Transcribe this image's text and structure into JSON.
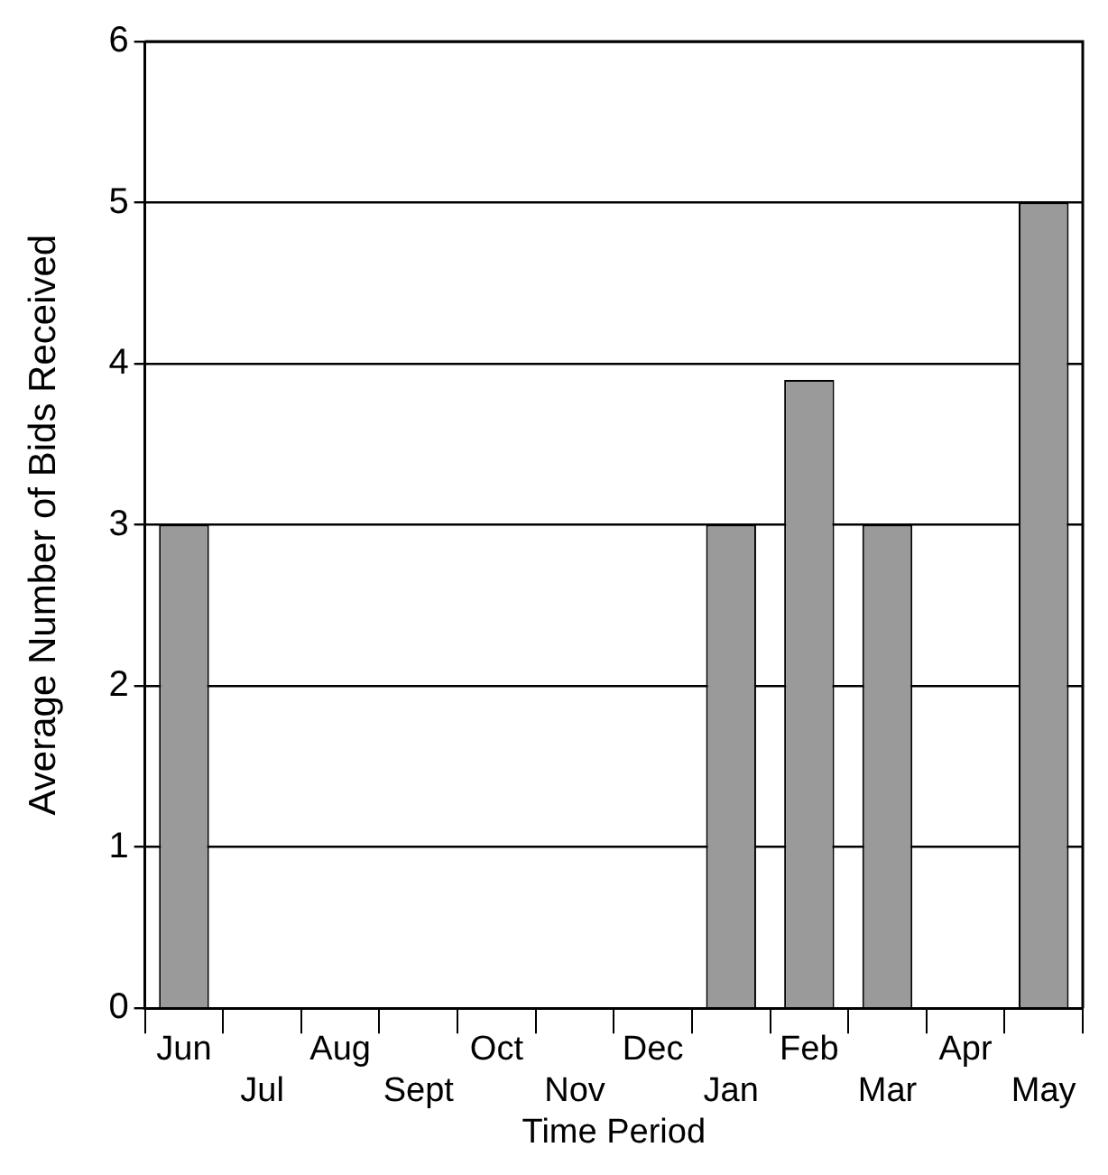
{
  "chart_data": {
    "type": "bar",
    "xlabel": "Time Period",
    "ylabel": "Average Number of Bids Received",
    "categories": [
      "Jun",
      "Jul",
      "Aug",
      "Sept",
      "Oct",
      "Nov",
      "Dec",
      "Jan",
      "Feb",
      "Mar",
      "Apr",
      "May"
    ],
    "values": [
      3,
      null,
      null,
      null,
      null,
      null,
      null,
      3,
      3.9,
      3,
      null,
      5
    ],
    "color": "#9a9a9a",
    "ylim": [
      0,
      6
    ],
    "yticks": [
      0,
      1,
      2,
      3,
      4,
      5,
      6
    ],
    "grid": "y",
    "legend": false
  }
}
